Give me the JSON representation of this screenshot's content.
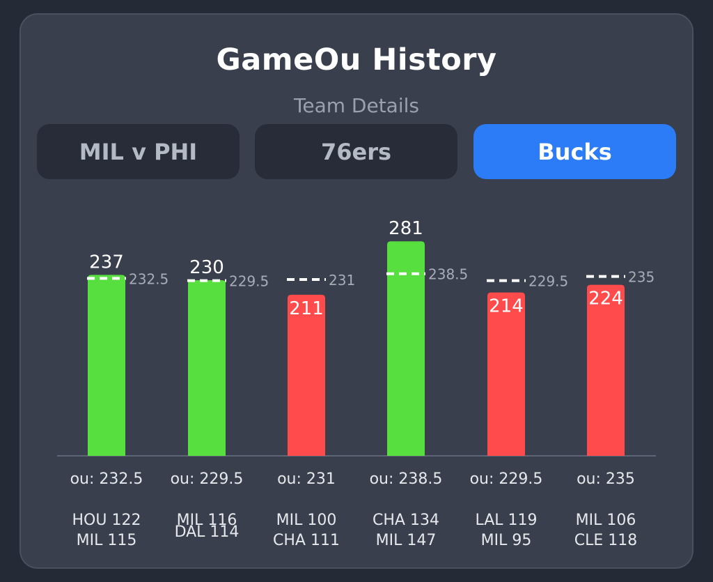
{
  "header": {
    "title": "GameOu History",
    "subtitle": "Team Details"
  },
  "tabs": [
    {
      "label": "MIL v PHI",
      "active": false
    },
    {
      "label": "76ers",
      "active": false
    },
    {
      "label": "Bucks",
      "active": true
    }
  ],
  "colors": {
    "over": "#57de3f",
    "under": "#ff4b4b",
    "accent": "#2b7cf6",
    "line": "#ffffff"
  },
  "chart_data": {
    "type": "bar",
    "categories": [
      "HOU 122\nMIL 115",
      "MIL 116\nDAL 114",
      "MIL 100\nCHA 111",
      "CHA 134\nMIL 147",
      "LAL 119\nMIL 95",
      "MIL 106\nCLE 118"
    ],
    "values": [
      237,
      230,
      211,
      281,
      214,
      224
    ],
    "ou_lines": [
      232.5,
      229.5,
      231,
      238.5,
      229.5,
      235
    ],
    "ou_labels": [
      "ou: 232.5",
      "ou: 229.5",
      "ou: 231",
      "ou: 238.5",
      "ou: 229.5",
      "ou: 235"
    ],
    "ou_line_labels": [
      "232.5",
      "229.5",
      "231",
      "238.5",
      "229.5",
      "235"
    ],
    "value_labels": [
      "237",
      "230",
      "211",
      "281",
      "214",
      "224"
    ],
    "matchups": [
      [
        "HOU 122",
        "MIL 115"
      ],
      [
        "MIL 116",
        "DAL 114"
      ],
      [
        "MIL 100",
        "CHA 111"
      ],
      [
        "CHA 134",
        "MIL 147"
      ],
      [
        "LAL 119",
        "MIL 95"
      ],
      [
        "MIL 106",
        "CLE 118"
      ]
    ],
    "result": [
      "over",
      "over",
      "under",
      "over",
      "under",
      "under"
    ],
    "grid": false,
    "legend": "none"
  }
}
